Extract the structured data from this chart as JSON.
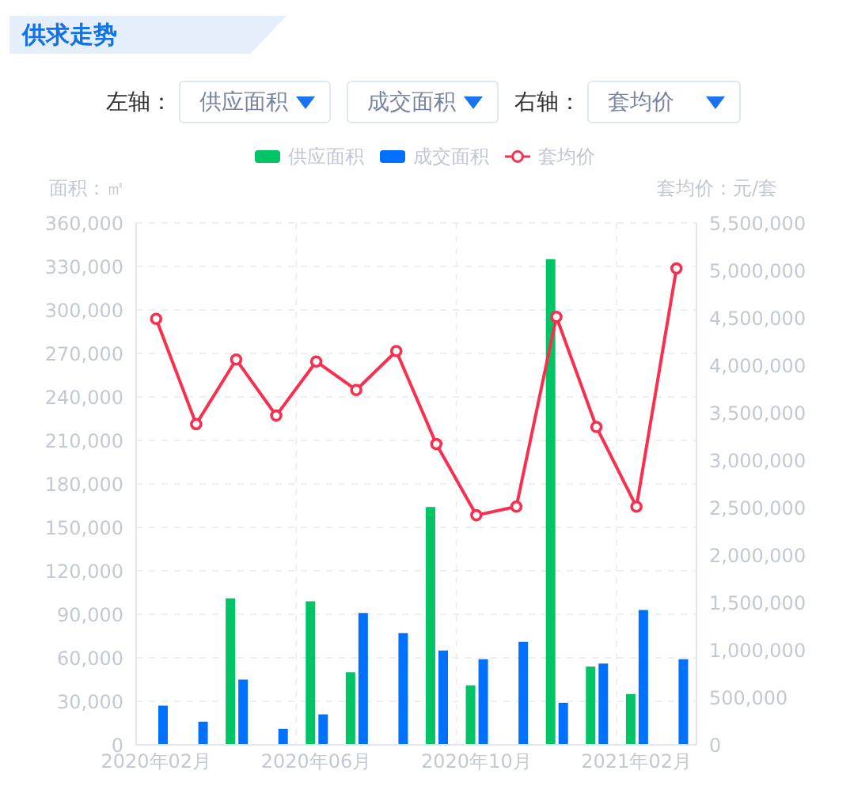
{
  "chart_data": {
    "type": "bar",
    "title": "供求走势",
    "ylabel": "面积：㎡",
    "y2label": "套均价：元/套",
    "annotations": [
      "左轴：",
      "右轴："
    ],
    "categories": [
      "2020年02月",
      null,
      null,
      null,
      "2020年06月",
      null,
      null,
      null,
      "2020年10月",
      null,
      null,
      null,
      "2021年02月",
      null
    ],
    "series": [
      {
        "name": "供应面积",
        "color": "#00c466",
        "values": [
          null,
          null,
          101000,
          null,
          99000,
          50000,
          null,
          164000,
          41000,
          null,
          335000,
          54000,
          35000,
          null
        ]
      },
      {
        "name": "成交面积",
        "color": "#0070ff",
        "values": [
          27000,
          16000,
          45000,
          11000,
          21000,
          91000,
          77000,
          65000,
          59000,
          71000,
          29000,
          56000,
          93000,
          59000
        ]
      },
      {
        "name": "套均价",
        "type": "line",
        "axis": "y2",
        "color": "#f7304f",
        "values": [
          4490000,
          3380000,
          4060000,
          3470000,
          4040000,
          3740000,
          4150000,
          3170000,
          2420000,
          2510000,
          4510000,
          3350000,
          2510000,
          5020000
        ]
      }
    ],
    "ylim": [
      0,
      360000
    ],
    "yticks": [
      0,
      {
        "value": 30000,
        "label": "30,000"
      },
      {
        "value": 60000,
        "label": "60,000"
      },
      {
        "value": 90000,
        "label": "90,000"
      },
      {
        "value": 120000,
        "label": "120,000"
      },
      {
        "value": 150000,
        "label": "150,000"
      },
      {
        "value": 180000,
        "label": "180,000"
      },
      {
        "value": 210000,
        "label": "210,000"
      },
      {
        "value": 240000,
        "label": "240,000"
      },
      {
        "value": 270000,
        "label": "270,000"
      },
      {
        "value": 300000,
        "label": "300,000"
      },
      {
        "value": 330000,
        "label": "330,000"
      },
      {
        "value": 360000,
        "label": "360,000"
      }
    ],
    "y2lim": [
      0,
      5500000
    ],
    "y2ticks": [
      0,
      {
        "value": 500000,
        "label": "500,000"
      },
      {
        "value": 1000000,
        "label": "1,000,000"
      },
      {
        "value": 1500000,
        "label": "1,500,000"
      },
      {
        "value": 2000000,
        "label": "2,000,000"
      },
      {
        "value": 2500000,
        "label": "2,500,000"
      },
      {
        "value": 3000000,
        "label": "3,000,000"
      },
      {
        "value": 3500000,
        "label": "3,500,000"
      },
      {
        "value": 4000000,
        "label": "4,000,000"
      },
      {
        "value": 4500000,
        "label": "4,500,000"
      },
      {
        "value": 5000000,
        "label": "5,000,000"
      },
      {
        "value": 5500000,
        "label": "5,500,000"
      }
    ],
    "grid": true,
    "legend": "top",
    "marker": "circle",
    "line_style": "solid"
  }
}
